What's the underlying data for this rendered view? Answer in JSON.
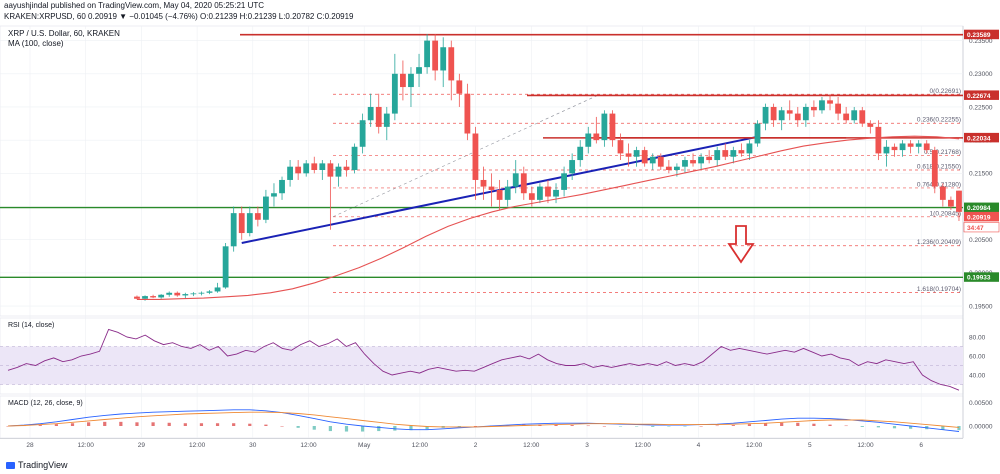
{
  "header": {
    "publish_line": "aayushjindal published on TradingView.com, May 04, 2020 05:25:21 UTC",
    "ohlc_line": "KRAKEN:XRPUSD, 60 0.20919 ▼ −0.01045 (−4.76%) O:0.21239 H:0.21239 L:0.20782 C:0.20919",
    "symbol_line": "XRP / U.S. Dollar, 60, KRAKEN",
    "ma_line": "MA (100, close)"
  },
  "footer": {
    "brand": "TradingView"
  },
  "colors": {
    "up": "#26a69a",
    "down": "#ef5350",
    "trend": "#1a22b5",
    "ma": "#e65252",
    "level": "#c9302c",
    "support": "#2a8a2a",
    "fib": "#ef5350",
    "rsi": "#8a2c8a",
    "macd": "#2962ff",
    "signal": "#ef8a35"
  },
  "chart_data": [
    {
      "type": "candlestick",
      "title": "XRP / U.S. Dollar, 60, KRAKEN",
      "indicator": "MA (100, close)",
      "ylim": [
        0.1935,
        0.2372
      ],
      "y_ticks": [
        "0.23500",
        "0.23000",
        "0.22500",
        "0.22000",
        "0.21500",
        "0.21000",
        "0.20500",
        "0.20000",
        "0.19500"
      ],
      "x_ticks": [
        "28",
        "12:00",
        "29",
        "12:00",
        "30",
        "12:00",
        "May",
        "12:00",
        "2",
        "12:00",
        "3",
        "12:00",
        "4",
        "12:00",
        "5",
        "12:00",
        "6"
      ],
      "price_labels": [
        {
          "text": "0.23589",
          "value": 0.23589,
          "kind": "resistance"
        },
        {
          "text": "0.22674",
          "value": 0.22674,
          "kind": "resistance"
        },
        {
          "text": "0.22034",
          "value": 0.22034,
          "kind": "resistance"
        },
        {
          "text": "0.20984",
          "value": 0.20984,
          "kind": "support"
        },
        {
          "text": "0.20919",
          "value": 0.20919,
          "kind": "last"
        },
        {
          "text": "34:47",
          "value": 0.20835,
          "kind": "countdown"
        },
        {
          "text": "0.19933",
          "value": 0.19933,
          "kind": "support"
        }
      ],
      "fib_levels": [
        {
          "label": "0(0.22691)",
          "value": 0.22691
        },
        {
          "label": "0.236(0.22255)",
          "value": 0.22255
        },
        {
          "label": "0.5(0.21768)",
          "value": 0.21768
        },
        {
          "label": "0.618(0.21550)",
          "value": 0.2155
        },
        {
          "label": "0.764(0.21280)",
          "value": 0.2128
        },
        {
          "label": "1(0.20845)",
          "value": 0.20845
        },
        {
          "label": "1.236(0.20409)",
          "value": 0.20409
        },
        {
          "label": "1.618(0.19704)",
          "value": 0.19704
        }
      ],
      "candles": [
        [
          0.19642,
          0.19658,
          0.196,
          0.1961
        ],
        [
          0.1961,
          0.1966,
          0.1958,
          0.1965
        ],
        [
          0.1965,
          0.1967,
          0.1962,
          0.1963
        ],
        [
          0.1963,
          0.1968,
          0.1961,
          0.1967
        ],
        [
          0.1967,
          0.1972,
          0.1964,
          0.197
        ],
        [
          0.197,
          0.1972,
          0.1964,
          0.1966
        ],
        [
          0.1966,
          0.197,
          0.1962,
          0.1968
        ],
        [
          0.1968,
          0.1971,
          0.1965,
          0.1969
        ],
        [
          0.1969,
          0.1972,
          0.1966,
          0.197
        ],
        [
          0.197,
          0.1974,
          0.1968,
          0.1972
        ],
        [
          0.1972,
          0.1985,
          0.197,
          0.1978
        ],
        [
          0.1978,
          0.2045,
          0.1976,
          0.204
        ],
        [
          0.204,
          0.21,
          0.2032,
          0.209
        ],
        [
          0.209,
          0.21,
          0.205,
          0.206
        ],
        [
          0.206,
          0.21,
          0.2055,
          0.209
        ],
        [
          0.209,
          0.21,
          0.207,
          0.208
        ],
        [
          0.208,
          0.2125,
          0.2075,
          0.2115
        ],
        [
          0.2115,
          0.2135,
          0.21,
          0.212
        ],
        [
          0.212,
          0.2145,
          0.211,
          0.214
        ],
        [
          0.214,
          0.217,
          0.213,
          0.216
        ],
        [
          0.216,
          0.217,
          0.214,
          0.215
        ],
        [
          0.215,
          0.217,
          0.2145,
          0.2165
        ],
        [
          0.2165,
          0.2175,
          0.215,
          0.2155
        ],
        [
          0.2155,
          0.217,
          0.214,
          0.2165
        ],
        [
          0.2165,
          0.217,
          0.2065,
          0.2145
        ],
        [
          0.2145,
          0.2165,
          0.213,
          0.216
        ],
        [
          0.216,
          0.217,
          0.2145,
          0.2155
        ],
        [
          0.2155,
          0.2195,
          0.215,
          0.219
        ],
        [
          0.219,
          0.224,
          0.218,
          0.223
        ],
        [
          0.223,
          0.227,
          0.222,
          0.225
        ],
        [
          0.225,
          0.227,
          0.221,
          0.222
        ],
        [
          0.222,
          0.225,
          0.22,
          0.224
        ],
        [
          0.224,
          0.233,
          0.223,
          0.23
        ],
        [
          0.23,
          0.232,
          0.226,
          0.228
        ],
        [
          0.228,
          0.231,
          0.225,
          0.23
        ],
        [
          0.23,
          0.233,
          0.228,
          0.231
        ],
        [
          0.231,
          0.236,
          0.23,
          0.235
        ],
        [
          0.235,
          0.236,
          0.229,
          0.2305
        ],
        [
          0.2305,
          0.2355,
          0.228,
          0.234
        ],
        [
          0.234,
          0.235,
          0.226,
          0.229
        ],
        [
          0.229,
          0.23,
          0.225,
          0.227
        ],
        [
          0.227,
          0.2285,
          0.22,
          0.221
        ],
        [
          0.221,
          0.222,
          0.211,
          0.214
        ],
        [
          0.214,
          0.216,
          0.211,
          0.213
        ],
        [
          0.213,
          0.215,
          0.21,
          0.2125
        ],
        [
          0.2125,
          0.214,
          0.2095,
          0.211
        ],
        [
          0.211,
          0.214,
          0.21,
          0.213
        ],
        [
          0.213,
          0.217,
          0.212,
          0.215
        ],
        [
          0.215,
          0.216,
          0.211,
          0.212
        ],
        [
          0.212,
          0.213,
          0.21,
          0.211
        ],
        [
          0.211,
          0.2135,
          0.2105,
          0.213
        ],
        [
          0.213,
          0.214,
          0.2105,
          0.2115
        ],
        [
          0.2115,
          0.2135,
          0.2105,
          0.2125
        ],
        [
          0.2125,
          0.216,
          0.2115,
          0.215
        ],
        [
          0.215,
          0.218,
          0.214,
          0.217
        ],
        [
          0.217,
          0.22,
          0.216,
          0.219
        ],
        [
          0.219,
          0.222,
          0.218,
          0.221
        ],
        [
          0.221,
          0.2235,
          0.2195,
          0.22
        ],
        [
          0.22,
          0.2245,
          0.219,
          0.224
        ],
        [
          0.224,
          0.2245,
          0.219,
          0.22
        ],
        [
          0.22,
          0.221,
          0.217,
          0.218
        ],
        [
          0.218,
          0.2195,
          0.216,
          0.2175
        ],
        [
          0.2175,
          0.219,
          0.216,
          0.2185
        ],
        [
          0.2185,
          0.219,
          0.216,
          0.2165
        ],
        [
          0.2165,
          0.218,
          0.2155,
          0.2175
        ],
        [
          0.2175,
          0.218,
          0.2155,
          0.216
        ],
        [
          0.216,
          0.217,
          0.215,
          0.2155
        ],
        [
          0.2155,
          0.2165,
          0.2145,
          0.216
        ],
        [
          0.216,
          0.2175,
          0.215,
          0.217
        ],
        [
          0.217,
          0.218,
          0.216,
          0.2165
        ],
        [
          0.2165,
          0.218,
          0.2155,
          0.2175
        ],
        [
          0.2175,
          0.2185,
          0.2165,
          0.217
        ],
        [
          0.217,
          0.219,
          0.216,
          0.2185
        ],
        [
          0.2185,
          0.2195,
          0.217,
          0.2175
        ],
        [
          0.2175,
          0.219,
          0.2165,
          0.2185
        ],
        [
          0.2185,
          0.2195,
          0.2175,
          0.218
        ],
        [
          0.218,
          0.22,
          0.217,
          0.2195
        ],
        [
          0.2195,
          0.223,
          0.219,
          0.2225
        ],
        [
          0.2225,
          0.2255,
          0.2215,
          0.225
        ],
        [
          0.225,
          0.2255,
          0.222,
          0.223
        ],
        [
          0.223,
          0.225,
          0.2215,
          0.2245
        ],
        [
          0.2245,
          0.226,
          0.223,
          0.224
        ],
        [
          0.224,
          0.225,
          0.222,
          0.223
        ],
        [
          0.223,
          0.2255,
          0.222,
          0.225
        ],
        [
          0.225,
          0.226,
          0.2235,
          0.2245
        ],
        [
          0.2245,
          0.2265,
          0.224,
          0.226
        ],
        [
          0.226,
          0.22691,
          0.2245,
          0.2255
        ],
        [
          0.2255,
          0.2265,
          0.223,
          0.224
        ],
        [
          0.224,
          0.225,
          0.2225,
          0.223
        ],
        [
          0.223,
          0.225,
          0.2225,
          0.2245
        ],
        [
          0.2245,
          0.225,
          0.222,
          0.2225
        ],
        [
          0.2225,
          0.223,
          0.221,
          0.222
        ],
        [
          0.222,
          0.223,
          0.217,
          0.218
        ],
        [
          0.218,
          0.22,
          0.216,
          0.219
        ],
        [
          0.219,
          0.2195,
          0.2175,
          0.2185
        ],
        [
          0.2185,
          0.22,
          0.2175,
          0.2195
        ],
        [
          0.2195,
          0.22,
          0.218,
          0.219
        ],
        [
          0.219,
          0.22,
          0.218,
          0.2195
        ],
        [
          0.2195,
          0.22,
          0.218,
          0.2185
        ],
        [
          0.2185,
          0.219,
          0.212,
          0.213
        ],
        [
          0.213,
          0.2135,
          0.21,
          0.211
        ],
        [
          0.211,
          0.2115,
          0.2095,
          0.21
        ],
        [
          0.21239,
          0.21239,
          0.20782,
          0.20919
        ]
      ],
      "ma_100": [
        0.196,
        0.196,
        0.1961,
        0.1962,
        0.1964,
        0.1966,
        0.197,
        0.1976,
        0.1985,
        0.1996,
        0.2008,
        0.2022,
        0.2038,
        0.2055,
        0.207,
        0.2082,
        0.2092,
        0.21,
        0.2106,
        0.2112,
        0.2118,
        0.2125,
        0.2132,
        0.2139,
        0.2146,
        0.2153,
        0.216,
        0.2168,
        0.2176,
        0.2184,
        0.2191,
        0.2196,
        0.22,
        0.2203,
        0.2205,
        0.2206,
        0.2205,
        0.2202
      ],
      "trendlines": [
        {
          "from": [
            29,
            0.2045
          ],
          "to": [
            93,
            0.2205
          ]
        },
        {
          "from": [
            73,
            0.22035
          ],
          "to": [
            104,
            0.22035
          ]
        }
      ]
    },
    {
      "type": "line",
      "title": "RSI (14, close)",
      "ylim": [
        20,
        100
      ],
      "y_ticks": [
        "80.00",
        "60.00",
        "40.00"
      ],
      "band": [
        30,
        70
      ],
      "values": [
        45,
        48,
        52,
        50,
        55,
        58,
        54,
        56,
        60,
        62,
        65,
        88,
        85,
        80,
        78,
        82,
        76,
        72,
        74,
        70,
        68,
        72,
        66,
        70,
        60,
        62,
        66,
        64,
        70,
        74,
        68,
        66,
        72,
        76,
        70,
        73,
        78,
        70,
        74,
        62,
        52,
        44,
        40,
        42,
        44,
        42,
        46,
        48,
        46,
        44,
        45,
        44,
        48,
        52,
        56,
        58,
        60,
        57,
        62,
        56,
        52,
        50,
        50,
        52,
        48,
        50,
        48,
        50,
        52,
        50,
        52,
        50,
        54,
        50,
        52,
        50,
        54,
        62,
        70,
        66,
        68,
        66,
        64,
        62,
        64,
        66,
        64,
        68,
        64,
        60,
        62,
        58,
        56,
        50,
        54,
        52,
        56,
        54,
        52,
        54,
        40,
        34,
        30,
        28,
        24
      ]
    },
    {
      "type": "line",
      "title": "MACD (12, 26, close, 9)",
      "y_ticks": [
        "0.00500",
        "0.00000"
      ],
      "ylim": [
        -0.0026,
        0.0065
      ],
      "series": [
        {
          "name": "MACD",
          "values": [
            0.0,
            0.0002,
            0.0005,
            0.0009,
            0.0014,
            0.0019,
            0.0023,
            0.0026,
            0.0028,
            0.003,
            0.0031,
            0.0032,
            0.0033,
            0.0034,
            0.0035,
            0.0035,
            0.0033,
            0.0029,
            0.0023,
            0.0016,
            0.0009,
            0.0004,
            0.0,
            -0.0003,
            -0.0006,
            -0.0008,
            -0.0008,
            -0.0006,
            -0.0004,
            -0.0002,
            0.0,
            0.0002,
            0.0004,
            0.0005,
            0.0006,
            0.0006,
            0.0006,
            0.0005,
            0.0004,
            0.0003,
            0.0002,
            0.0002,
            0.0002,
            0.0003,
            0.0004,
            0.0006,
            0.0009,
            0.0012,
            0.0015,
            0.0017,
            0.0017,
            0.0016,
            0.0014,
            0.0011,
            0.0008,
            0.0004,
            0.0,
            -0.0004,
            -0.0008,
            -0.0012
          ]
        },
        {
          "name": "Signal",
          "values": [
            0.0,
            0.0001,
            0.0003,
            0.0005,
            0.0008,
            0.0011,
            0.0014,
            0.0017,
            0.002,
            0.0022,
            0.0024,
            0.0026,
            0.0027,
            0.0028,
            0.0029,
            0.003,
            0.003,
            0.0029,
            0.0027,
            0.0024,
            0.002,
            0.0016,
            0.0012,
            0.0008,
            0.0004,
            0.0001,
            -0.0001,
            -0.0002,
            -0.0002,
            -0.0002,
            -0.0001,
            0.0,
            0.0001,
            0.0002,
            0.0003,
            0.0004,
            0.0005,
            0.0005,
            0.0005,
            0.0004,
            0.0004,
            0.0003,
            0.0003,
            0.0003,
            0.0003,
            0.0004,
            0.0005,
            0.0006,
            0.0008,
            0.001,
            0.0012,
            0.0013,
            0.0013,
            0.0013,
            0.0011,
            0.0009,
            0.0006,
            0.0003,
            0.0,
            -0.0003
          ]
        }
      ]
    }
  ]
}
